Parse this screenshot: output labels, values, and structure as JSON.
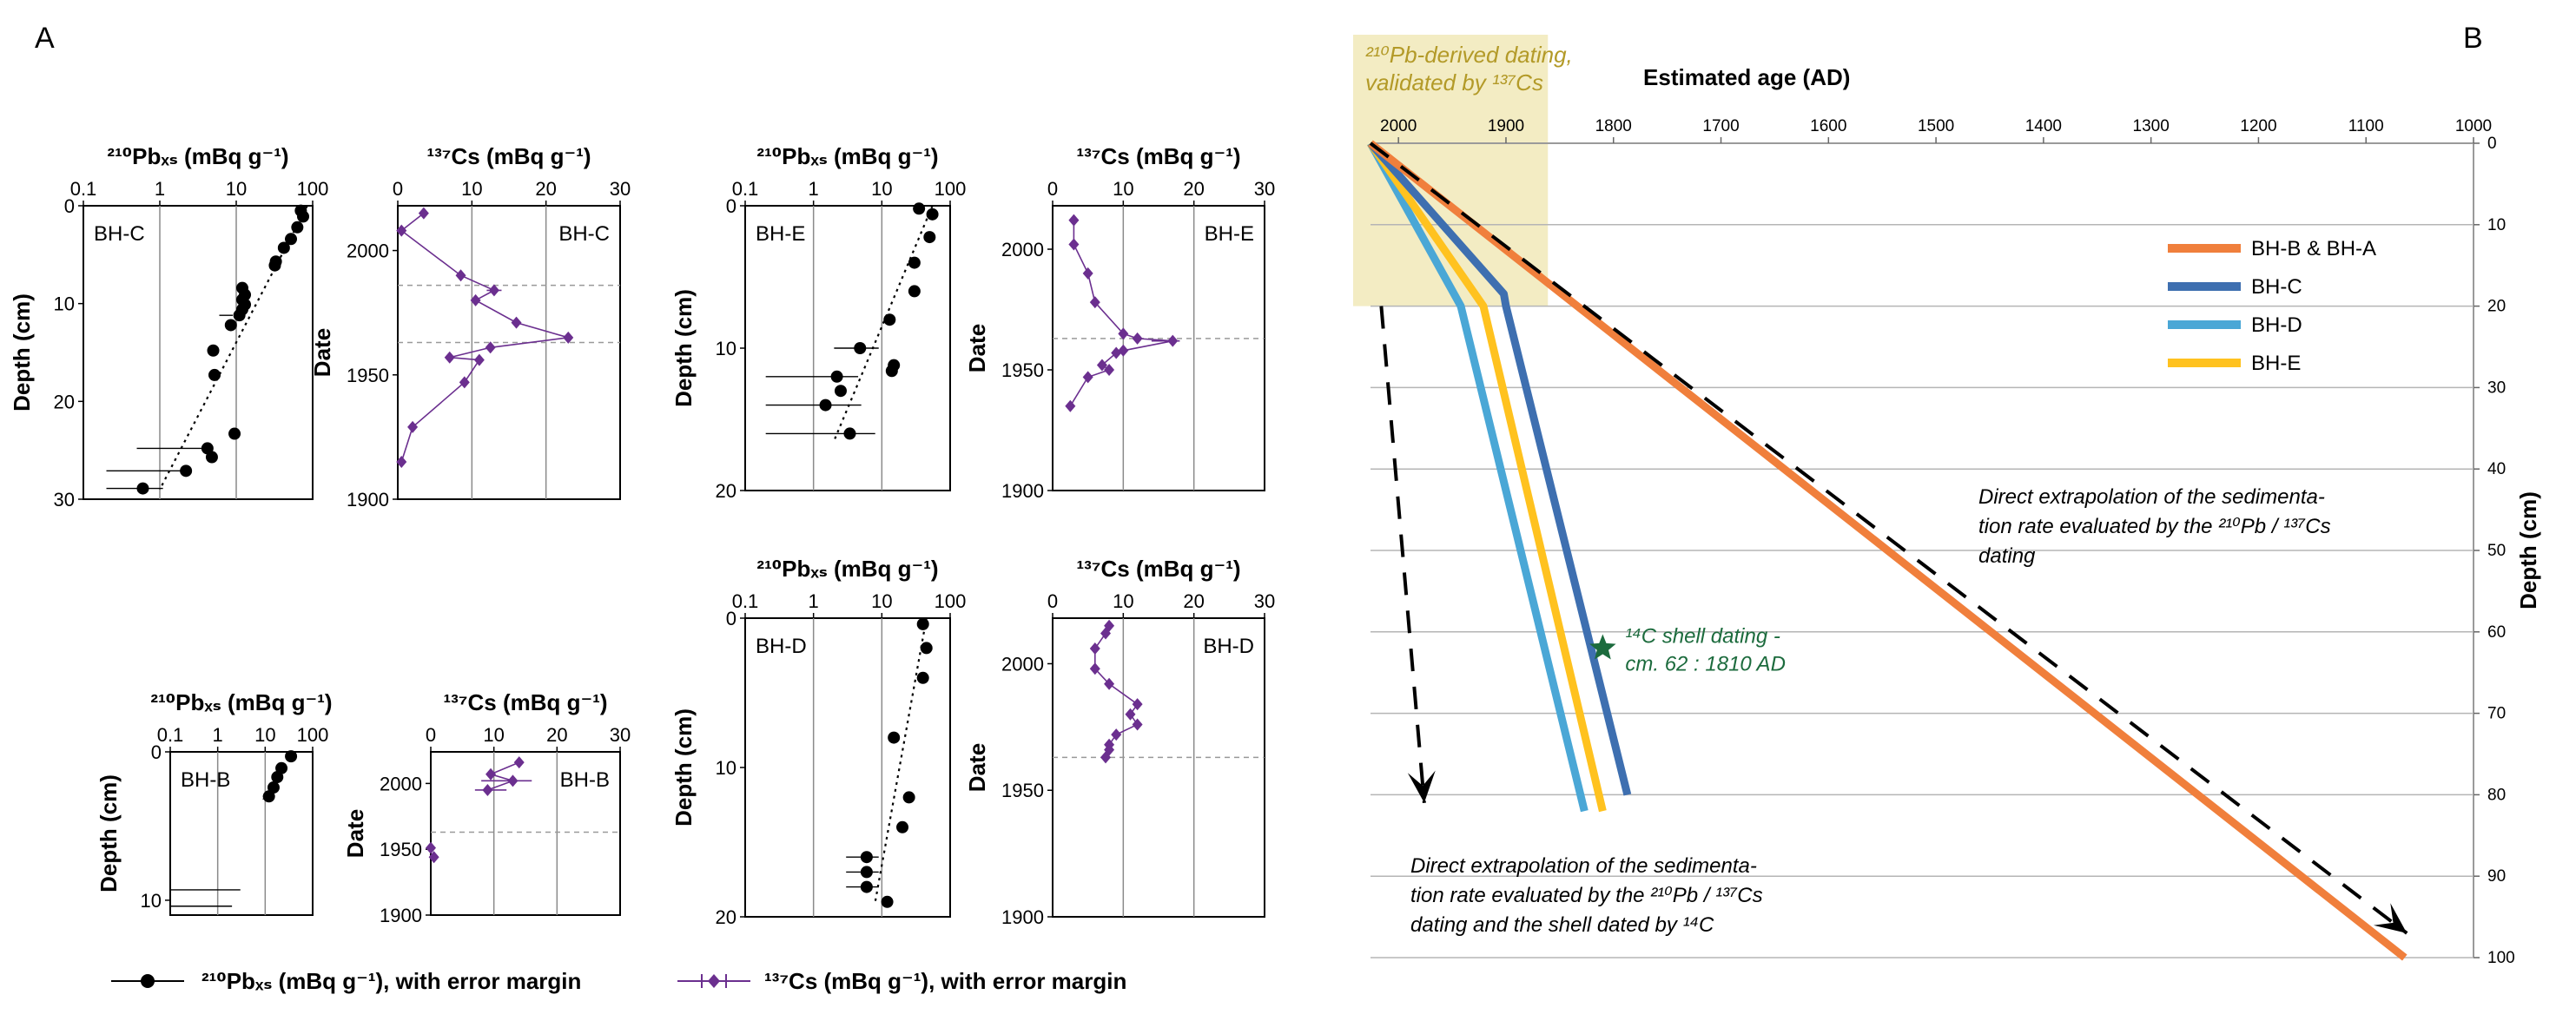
{
  "panel_labels": {
    "a": "A",
    "b": "B"
  },
  "colors": {
    "pb": "#000000",
    "cs": "#6b2f8f",
    "bhb": "#f07f3c",
    "bhc": "#3e6fb0",
    "bhd": "#4aa7d6",
    "bhe": "#ffc21f",
    "highlight": "#f3ecc3",
    "highlight_text": "#b39a28",
    "green": "#1c6b3d"
  },
  "axis_text": {
    "pb_title": "²¹⁰Pbₓₛ (mBq g⁻¹)",
    "cs_title": "¹³⁷Cs (mBq g⁻¹)",
    "depth_label": "Depth (cm)",
    "date_label": "Date"
  },
  "legend_a": {
    "pb": "²¹⁰Pbₓₛ (mBq g⁻¹), with error margin",
    "cs": "¹³⁷Cs (mBq g⁻¹), with error margin"
  },
  "chart_data": [
    {
      "type": "scatter",
      "panel": "A",
      "core": "BH-C",
      "series": "210Pbxs",
      "xscale": "log",
      "xlim": [
        0.1,
        100
      ],
      "ylim": [
        0,
        30
      ],
      "xticks": [
        "0.1",
        "1",
        "10",
        "100"
      ],
      "yticks": [
        "0",
        "10",
        "20",
        "30"
      ],
      "points": [
        [
          70,
          0.5
        ],
        [
          75,
          1.1
        ],
        [
          63,
          2.2
        ],
        [
          52,
          3.4
        ],
        [
          42,
          4.3
        ],
        [
          33,
          5.7
        ],
        [
          32,
          6.1
        ],
        [
          12,
          8.4
        ],
        [
          13,
          9.1
        ],
        [
          12,
          9.6
        ],
        [
          13,
          10.1
        ],
        [
          12,
          10.6
        ],
        [
          11,
          11.2
        ],
        [
          8.5,
          12.2
        ],
        [
          5,
          14.8
        ],
        [
          5.2,
          17.3
        ],
        [
          9.5,
          23.3
        ],
        [
          4.2,
          24.8
        ],
        [
          4.8,
          25.7
        ],
        [
          2.2,
          27.1
        ],
        [
          0.6,
          28.9
        ]
      ],
      "xerr": [
        [
          [
            6,
            9
          ],
          11.2
        ],
        [
          [
            0.5,
            4.2
          ],
          24.8
        ],
        [
          [
            0.2,
            2.2
          ],
          27.1
        ],
        [
          [
            0.2,
            1.1
          ],
          28.9
        ]
      ],
      "trend": [
        [
          85,
          0
        ],
        [
          1,
          29
        ]
      ],
      "vlines": [
        1,
        10
      ]
    },
    {
      "type": "line",
      "panel": "A",
      "core": "BH-C",
      "series": "137Cs",
      "xlim": [
        0,
        30
      ],
      "ylim": [
        1900,
        2018
      ],
      "xticks": [
        "0",
        "10",
        "20",
        "30"
      ],
      "yticks": [
        "1900",
        "1950",
        "2000"
      ],
      "points": [
        [
          3.5,
          2015
        ],
        [
          0.5,
          2008
        ],
        [
          8.5,
          1990
        ],
        [
          13,
          1984
        ],
        [
          10.5,
          1980
        ],
        [
          16,
          1971
        ],
        [
          23,
          1965
        ],
        [
          12.5,
          1961
        ],
        [
          7,
          1957
        ],
        [
          11,
          1956
        ],
        [
          9,
          1947
        ],
        [
          2,
          1929
        ],
        [
          0.5,
          1915
        ]
      ],
      "xerr": [
        [
          [
            12,
            14
          ],
          1984
        ]
      ],
      "ref_lines": [
        1986,
        1963
      ],
      "vlines": [
        10,
        20
      ]
    },
    {
      "type": "scatter",
      "panel": "A",
      "core": "BH-E",
      "series": "210Pbxs",
      "xscale": "log",
      "xlim": [
        0.1,
        100
      ],
      "ylim": [
        0,
        20
      ],
      "xticks": [
        "0.1",
        "1",
        "10",
        "100"
      ],
      "yticks": [
        "0",
        "10",
        "20"
      ],
      "points": [
        [
          35,
          0.2
        ],
        [
          55,
          0.6
        ],
        [
          50,
          2.2
        ],
        [
          30,
          4
        ],
        [
          30,
          6
        ],
        [
          13,
          8
        ],
        [
          15,
          11.2
        ],
        [
          14,
          11.6
        ],
        [
          4.8,
          10
        ],
        [
          2.2,
          12
        ],
        [
          2.5,
          13
        ],
        [
          1.5,
          14
        ],
        [
          3.4,
          16
        ]
      ],
      "xerr": [
        [
          [
            2,
            9
          ],
          10
        ],
        [
          [
            0.2,
            4.5
          ],
          12
        ],
        [
          [
            0.2,
            5
          ],
          14
        ],
        [
          [
            0.2,
            8
          ],
          16
        ]
      ],
      "trend": [
        [
          55,
          0
        ],
        [
          2,
          16.5
        ]
      ],
      "vlines": [
        1,
        10
      ]
    },
    {
      "type": "line",
      "panel": "A",
      "core": "BH-E",
      "series": "137Cs",
      "xlim": [
        0,
        30
      ],
      "ylim": [
        1900,
        2018
      ],
      "xticks": [
        "0",
        "10",
        "20",
        "30"
      ],
      "yticks": [
        "1900",
        "1950",
        "2000"
      ],
      "points": [
        [
          3,
          2012
        ],
        [
          3,
          2002
        ],
        [
          5,
          1990
        ],
        [
          6,
          1978
        ],
        [
          10,
          1965
        ],
        [
          12,
          1963
        ],
        [
          17,
          1962
        ],
        [
          10,
          1958
        ],
        [
          9,
          1957
        ],
        [
          7,
          1952
        ],
        [
          8,
          1950
        ],
        [
          5,
          1947
        ],
        [
          2.5,
          1935
        ]
      ],
      "xerr": [
        [
          [
            14,
            18
          ],
          1962
        ]
      ],
      "ref_lines": [
        1963
      ],
      "vlines": [
        10,
        20
      ]
    },
    {
      "type": "scatter",
      "panel": "A",
      "core": "BH-B",
      "series": "210Pbxs",
      "xscale": "log",
      "xlim": [
        0.1,
        100
      ],
      "ylim": [
        0,
        11
      ],
      "xticks": [
        "0.1",
        "1",
        "10",
        "100"
      ],
      "yticks": [
        "0",
        "10"
      ],
      "points": [
        [
          35,
          0.3
        ],
        [
          22,
          1.1
        ],
        [
          18,
          1.7
        ],
        [
          15,
          2.4
        ],
        [
          12,
          3.0
        ]
      ],
      "xerr": [
        [
          [
            9,
            15
          ],
          3.0
        ],
        [
          [
            0.1,
            3
          ],
          9.3
        ],
        [
          [
            0.1,
            2
          ],
          10.4
        ]
      ],
      "trend": [
        [
          38,
          0
        ],
        [
          9,
          3.2
        ]
      ],
      "vlines": [
        1,
        10
      ]
    },
    {
      "type": "line",
      "panel": "A",
      "core": "BH-B",
      "series": "137Cs",
      "xlim": [
        0,
        30
      ],
      "ylim": [
        1900,
        2024
      ],
      "xticks": [
        "0",
        "10",
        "20",
        "30"
      ],
      "yticks": [
        "1900",
        "1950",
        "2000"
      ],
      "points": [
        [
          14,
          2016
        ],
        [
          9.5,
          2007
        ],
        [
          13,
          2002
        ],
        [
          9,
          1995
        ]
      ],
      "isolated_points": [
        [
          0,
          1951
        ],
        [
          0.5,
          1944
        ]
      ],
      "xerr": [
        [
          [
            8,
            16
          ],
          2002
        ],
        [
          [
            7,
            12
          ],
          1995
        ]
      ],
      "ref_lines": [
        1963
      ],
      "vlines": [
        10,
        20
      ]
    },
    {
      "type": "scatter",
      "panel": "A",
      "core": "BH-D",
      "series": "210Pbxs",
      "xscale": "log",
      "xlim": [
        0.1,
        100
      ],
      "ylim": [
        0,
        20
      ],
      "xticks": [
        "0.1",
        "1",
        "10",
        "100"
      ],
      "yticks": [
        "0",
        "10",
        "20"
      ],
      "points": [
        [
          40,
          0.4
        ],
        [
          45,
          2
        ],
        [
          40,
          4
        ],
        [
          15,
          8
        ],
        [
          25,
          12
        ],
        [
          20,
          14
        ],
        [
          6,
          16
        ],
        [
          6,
          17
        ],
        [
          6,
          18
        ],
        [
          12,
          19
        ]
      ],
      "xerr": [
        [
          [
            3,
            9
          ],
          16
        ],
        [
          [
            3,
            9
          ],
          17
        ],
        [
          [
            3,
            9
          ],
          18
        ]
      ],
      "trend": [
        [
          45,
          0
        ],
        [
          8,
          19
        ]
      ],
      "vlines": [
        1,
        10
      ]
    },
    {
      "type": "line",
      "panel": "A",
      "core": "BH-D",
      "series": "137Cs",
      "xlim": [
        0,
        30
      ],
      "ylim": [
        1900,
        2018
      ],
      "xticks": [
        "0",
        "10",
        "20",
        "30"
      ],
      "yticks": [
        "1900",
        "1950",
        "2000"
      ],
      "points": [
        [
          8,
          2015
        ],
        [
          7.5,
          2012
        ],
        [
          6,
          2006
        ],
        [
          6,
          1998
        ],
        [
          8,
          1992
        ],
        [
          12,
          1984
        ],
        [
          11,
          1980
        ],
        [
          12,
          1976
        ],
        [
          9,
          1972
        ],
        [
          8,
          1968
        ],
        [
          8,
          1966
        ],
        [
          7.5,
          1963
        ]
      ],
      "ref_lines": [
        1963
      ],
      "vlines": [
        10,
        20
      ]
    },
    {
      "type": "line",
      "panel": "B",
      "xlabel": "Estimated age (AD)",
      "ylabel": "Depth (cm)",
      "xlim": [
        2026,
        1000
      ],
      "ylim": [
        0,
        100
      ],
      "xticks": [
        "2000",
        "1900",
        "1800",
        "1700",
        "1600",
        "1500",
        "1400",
        "1300",
        "1200",
        "1100",
        "1000"
      ],
      "yticks": [
        "0",
        "10",
        "20",
        "30",
        "40",
        "50",
        "60",
        "70",
        "80",
        "90",
        "100"
      ],
      "series": [
        {
          "name": "BH-B & BH-A",
          "points": [
            [
              2026,
              0
            ],
            [
              1064,
              100
            ]
          ]
        },
        {
          "name": "BH-C",
          "points": [
            [
              2026,
              0
            ],
            [
              1902,
              18.5
            ],
            [
              1900,
              20
            ],
            [
              1787,
              80
            ]
          ]
        },
        {
          "name": "BH-D",
          "points": [
            [
              2026,
              0
            ],
            [
              1942,
              20
            ],
            [
              1827,
              82
            ]
          ]
        },
        {
          "name": "BH-E",
          "points": [
            [
              2026,
              0
            ],
            [
              1921,
              20
            ],
            [
              1810,
              82
            ]
          ]
        }
      ],
      "dashed_arrows": [
        {
          "points": [
            [
              2026,
              0
            ],
            [
              1062,
              97
            ]
          ]
        },
        {
          "points": [
            [
              2016,
              20
            ],
            [
              1976,
              81
            ]
          ]
        }
      ],
      "highlight": {
        "age_range": [
          2026,
          1861
        ],
        "depth_range": [
          0,
          20
        ],
        "label": [
          "²¹⁰Pb-derived dating,",
          "validated by ¹³⁷Cs"
        ]
      },
      "star": {
        "age": 1810,
        "depth": 62,
        "label": [
          "¹⁴C shell dating -",
          "cm. 62 : 1810 AD"
        ]
      },
      "annotations": [
        [
          "Direct extrapolation of the sedimenta-",
          "tion rate evaluated by the ²¹⁰Pb / ¹³⁷Cs",
          "dating"
        ],
        [
          "Direct extrapolation of the sedimenta-",
          "tion rate evaluated by the ²¹⁰Pb / ¹³⁷Cs",
          "dating and the shell dated by ¹⁴C"
        ]
      ]
    }
  ]
}
